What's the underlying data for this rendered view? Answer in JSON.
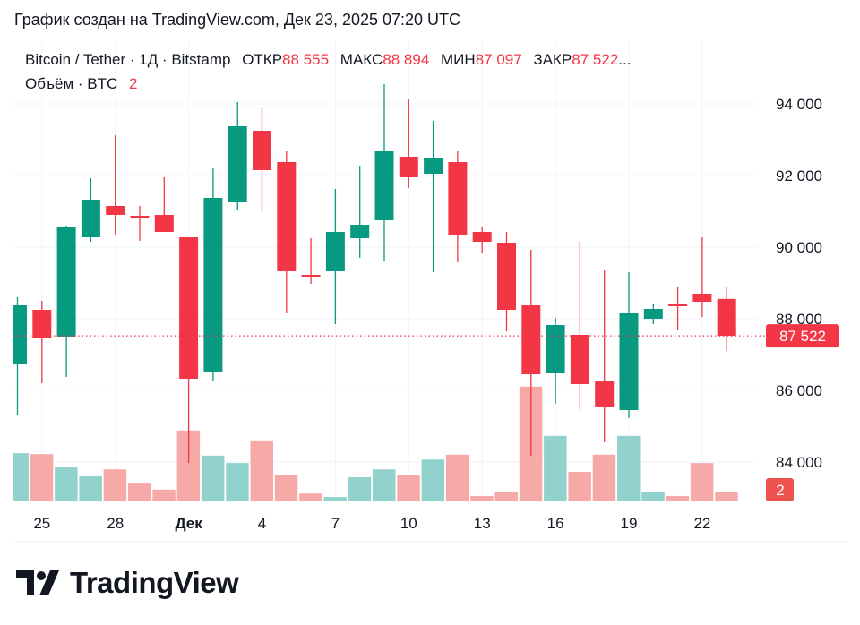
{
  "title": "График создан на TradingView.com, Дек 23, 2025 07:20 UTC",
  "legend": {
    "symbol": "Bitcoin / Tether · 1Д · Bitstamp",
    "open_label": "ОТКР",
    "open": "88 555",
    "high_label": "МАКС",
    "high": "88 894",
    "low_label": "МИН",
    "low": "87 097",
    "close_label": "ЗАКР",
    "close": "87 522",
    "ellipsis": "...",
    "volume_label": "Объём · BTC",
    "volume": "2"
  },
  "logo_text": "TradingView",
  "colors": {
    "up": "#089981",
    "down": "#f23645",
    "vol_up": "#92d2cc",
    "vol_down": "#f7a9a7",
    "grid": "#f0f3fa"
  },
  "chart_data": {
    "type": "candlestick",
    "price_axis": {
      "ticks": [
        "94 000",
        "92 000",
        "90 000",
        "88 000",
        "86 000",
        "84 000"
      ],
      "range": [
        82900,
        95100
      ]
    },
    "time_axis": {
      "ticks": [
        "25",
        "28",
        "Дек",
        "4",
        "7",
        "10",
        "13",
        "16",
        "19",
        "22"
      ]
    },
    "last_price_label": "87 522",
    "last_volume_label": "2",
    "grid": true,
    "dates": [
      "Nov 24",
      "Nov 25",
      "Nov 26",
      "Nov 27",
      "Nov 28",
      "Nov 29",
      "Nov 30",
      "Dec 1",
      "Dec 2",
      "Dec 3",
      "Dec 4",
      "Dec 5",
      "Dec 6",
      "Dec 7",
      "Dec 8",
      "Dec 9",
      "Dec 10",
      "Dec 11",
      "Dec 12",
      "Dec 13",
      "Dec 14",
      "Dec 15",
      "Dec 16",
      "Dec 17",
      "Dec 18",
      "Dec 19",
      "Dec 20",
      "Dec 21",
      "Dec 22",
      "Dec 23"
    ],
    "ohlc": [
      [
        86725,
        88600,
        85300,
        88375
      ],
      [
        88250,
        88500,
        86200,
        87450
      ],
      [
        87500,
        90600,
        86375,
        90550
      ],
      [
        90275,
        91925,
        90150,
        91325
      ],
      [
        91150,
        93125,
        90325,
        90900
      ],
      [
        90875,
        91150,
        90175,
        90825
      ],
      [
        90900,
        91950,
        90425,
        90425
      ],
      [
        90275,
        90275,
        83975,
        86325
      ],
      [
        86500,
        92200,
        86275,
        91375
      ],
      [
        91250,
        94050,
        91050,
        93375
      ],
      [
        93250,
        93900,
        91000,
        92150
      ],
      [
        92375,
        92675,
        88150,
        89325
      ],
      [
        89225,
        90250,
        88975,
        89175
      ],
      [
        89325,
        91625,
        87850,
        90425
      ],
      [
        90250,
        92275,
        89700,
        90625
      ],
      [
        90750,
        94550,
        89600,
        92675
      ],
      [
        92525,
        94125,
        91650,
        91950
      ],
      [
        92050,
        93525,
        89300,
        92500
      ],
      [
        92375,
        92675,
        89575,
        90325
      ],
      [
        90425,
        90550,
        89825,
        90150
      ],
      [
        90125,
        90425,
        87650,
        88250
      ],
      [
        88375,
        89925,
        84175,
        86450
      ],
      [
        86475,
        88025,
        85625,
        87825
      ],
      [
        87550,
        90175,
        85475,
        86175
      ],
      [
        86250,
        89350,
        84550,
        85525
      ],
      [
        85450,
        89300,
        85225,
        88150
      ],
      [
        88000,
        88400,
        87850,
        88275
      ],
      [
        88400,
        88875,
        87675,
        88350
      ],
      [
        88700,
        90275,
        88050,
        88475
      ],
      [
        88555,
        88894,
        87097,
        87522
      ]
    ],
    "volume": [
      9.8,
      9.6,
      6.9,
      5.1,
      6.5,
      3.8,
      2.4,
      14.4,
      9.3,
      7.8,
      12.4,
      5.3,
      1.6,
      0.9,
      4.9,
      6.5,
      5.3,
      8.5,
      9.5,
      1.1,
      2.0,
      23.3,
      13.3,
      6.0,
      9.5,
      13.3,
      2.0,
      1.1,
      7.8,
      2.0
    ]
  }
}
